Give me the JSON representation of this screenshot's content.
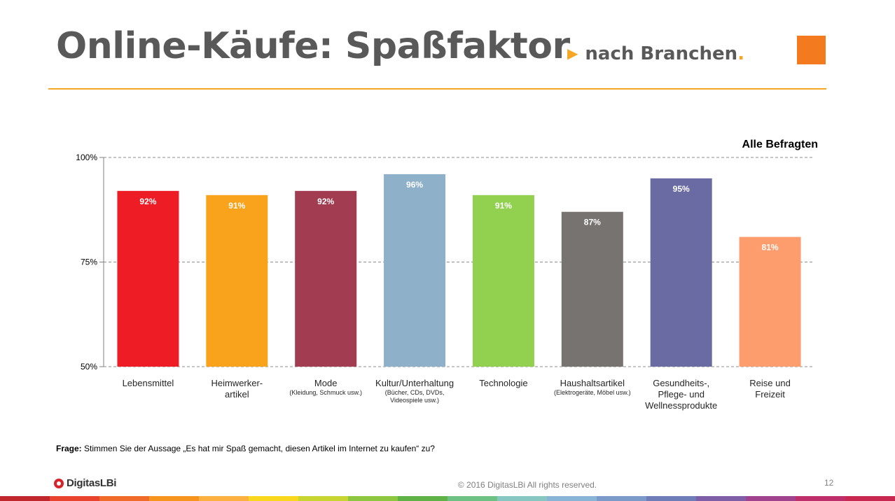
{
  "header": {
    "title": "Online-Käufe: Spaßfaktor",
    "subtitle_arrow": "▶",
    "subtitle": "nach Branchen",
    "subtitle_dot": ".",
    "accent_color": "#f47a1f",
    "rule_color": "#f5a623"
  },
  "chart_data": {
    "type": "bar",
    "title": "",
    "base_label": "Alle Befragten",
    "ylim": [
      50,
      100
    ],
    "yticks": [
      {
        "value": 50,
        "label": "50%"
      },
      {
        "value": 75,
        "label": "75%"
      },
      {
        "value": 100,
        "label": "100%"
      }
    ],
    "grid": true,
    "categories": [
      {
        "label": [
          "Lebensmittel"
        ],
        "sub": [],
        "value": 92,
        "value_label": "92%",
        "color": "#ee1c25"
      },
      {
        "label": [
          "Heimwerker-",
          "artikel"
        ],
        "sub": [],
        "value": 91,
        "value_label": "91%",
        "color": "#f9a21b"
      },
      {
        "label": [
          "Mode"
        ],
        "sub": [
          "(Kleidung, Schmuck usw.)"
        ],
        "value": 92,
        "value_label": "92%",
        "color": "#a23c51"
      },
      {
        "label": [
          "Kultur/Unterhaltung"
        ],
        "sub": [
          "(Bücher, CDs, DVDs,",
          "Videospiele usw.)"
        ],
        "value": 96,
        "value_label": "96%",
        "color": "#8eb0c9"
      },
      {
        "label": [
          "Technologie"
        ],
        "sub": [],
        "value": 91,
        "value_label": "91%",
        "color": "#92d050"
      },
      {
        "label": [
          "Haushaltsartikel"
        ],
        "sub": [
          "(Elektrogeräte, Möbel usw.)"
        ],
        "value": 87,
        "value_label": "87%",
        "color": "#767370"
      },
      {
        "label": [
          "Gesundheits-,",
          "Pflege- und",
          "Wellnessprodukte"
        ],
        "sub": [],
        "value": 95,
        "value_label": "95%",
        "color": "#6b6ba3"
      },
      {
        "label": [
          "Reise und",
          "Freizeit"
        ],
        "sub": [],
        "value": 81,
        "value_label": "81%",
        "color": "#fd9c6c"
      }
    ]
  },
  "question": {
    "prefix": "Frage:",
    "text": " Stimmen Sie der Aussage „Es hat mir Spaß gemacht, diesen Artikel im Internet zu kaufen“ zu?"
  },
  "footer": {
    "logo_text": "DigitasLBi",
    "copyright": "© 2016 DigitasLBi  All rights reserved.",
    "page_number": "12",
    "rainbow_colors": [
      "#c0272d",
      "#e8432c",
      "#f06a2a",
      "#f7941d",
      "#fbb040",
      "#f9d71c",
      "#c8d42f",
      "#8dc63f",
      "#5fb246",
      "#6cc183",
      "#86c7c2",
      "#8ab4d6",
      "#7b9ac9",
      "#6e7db8",
      "#7e5ea6",
      "#a0428e",
      "#be2e6b",
      "#c8284f"
    ]
  }
}
